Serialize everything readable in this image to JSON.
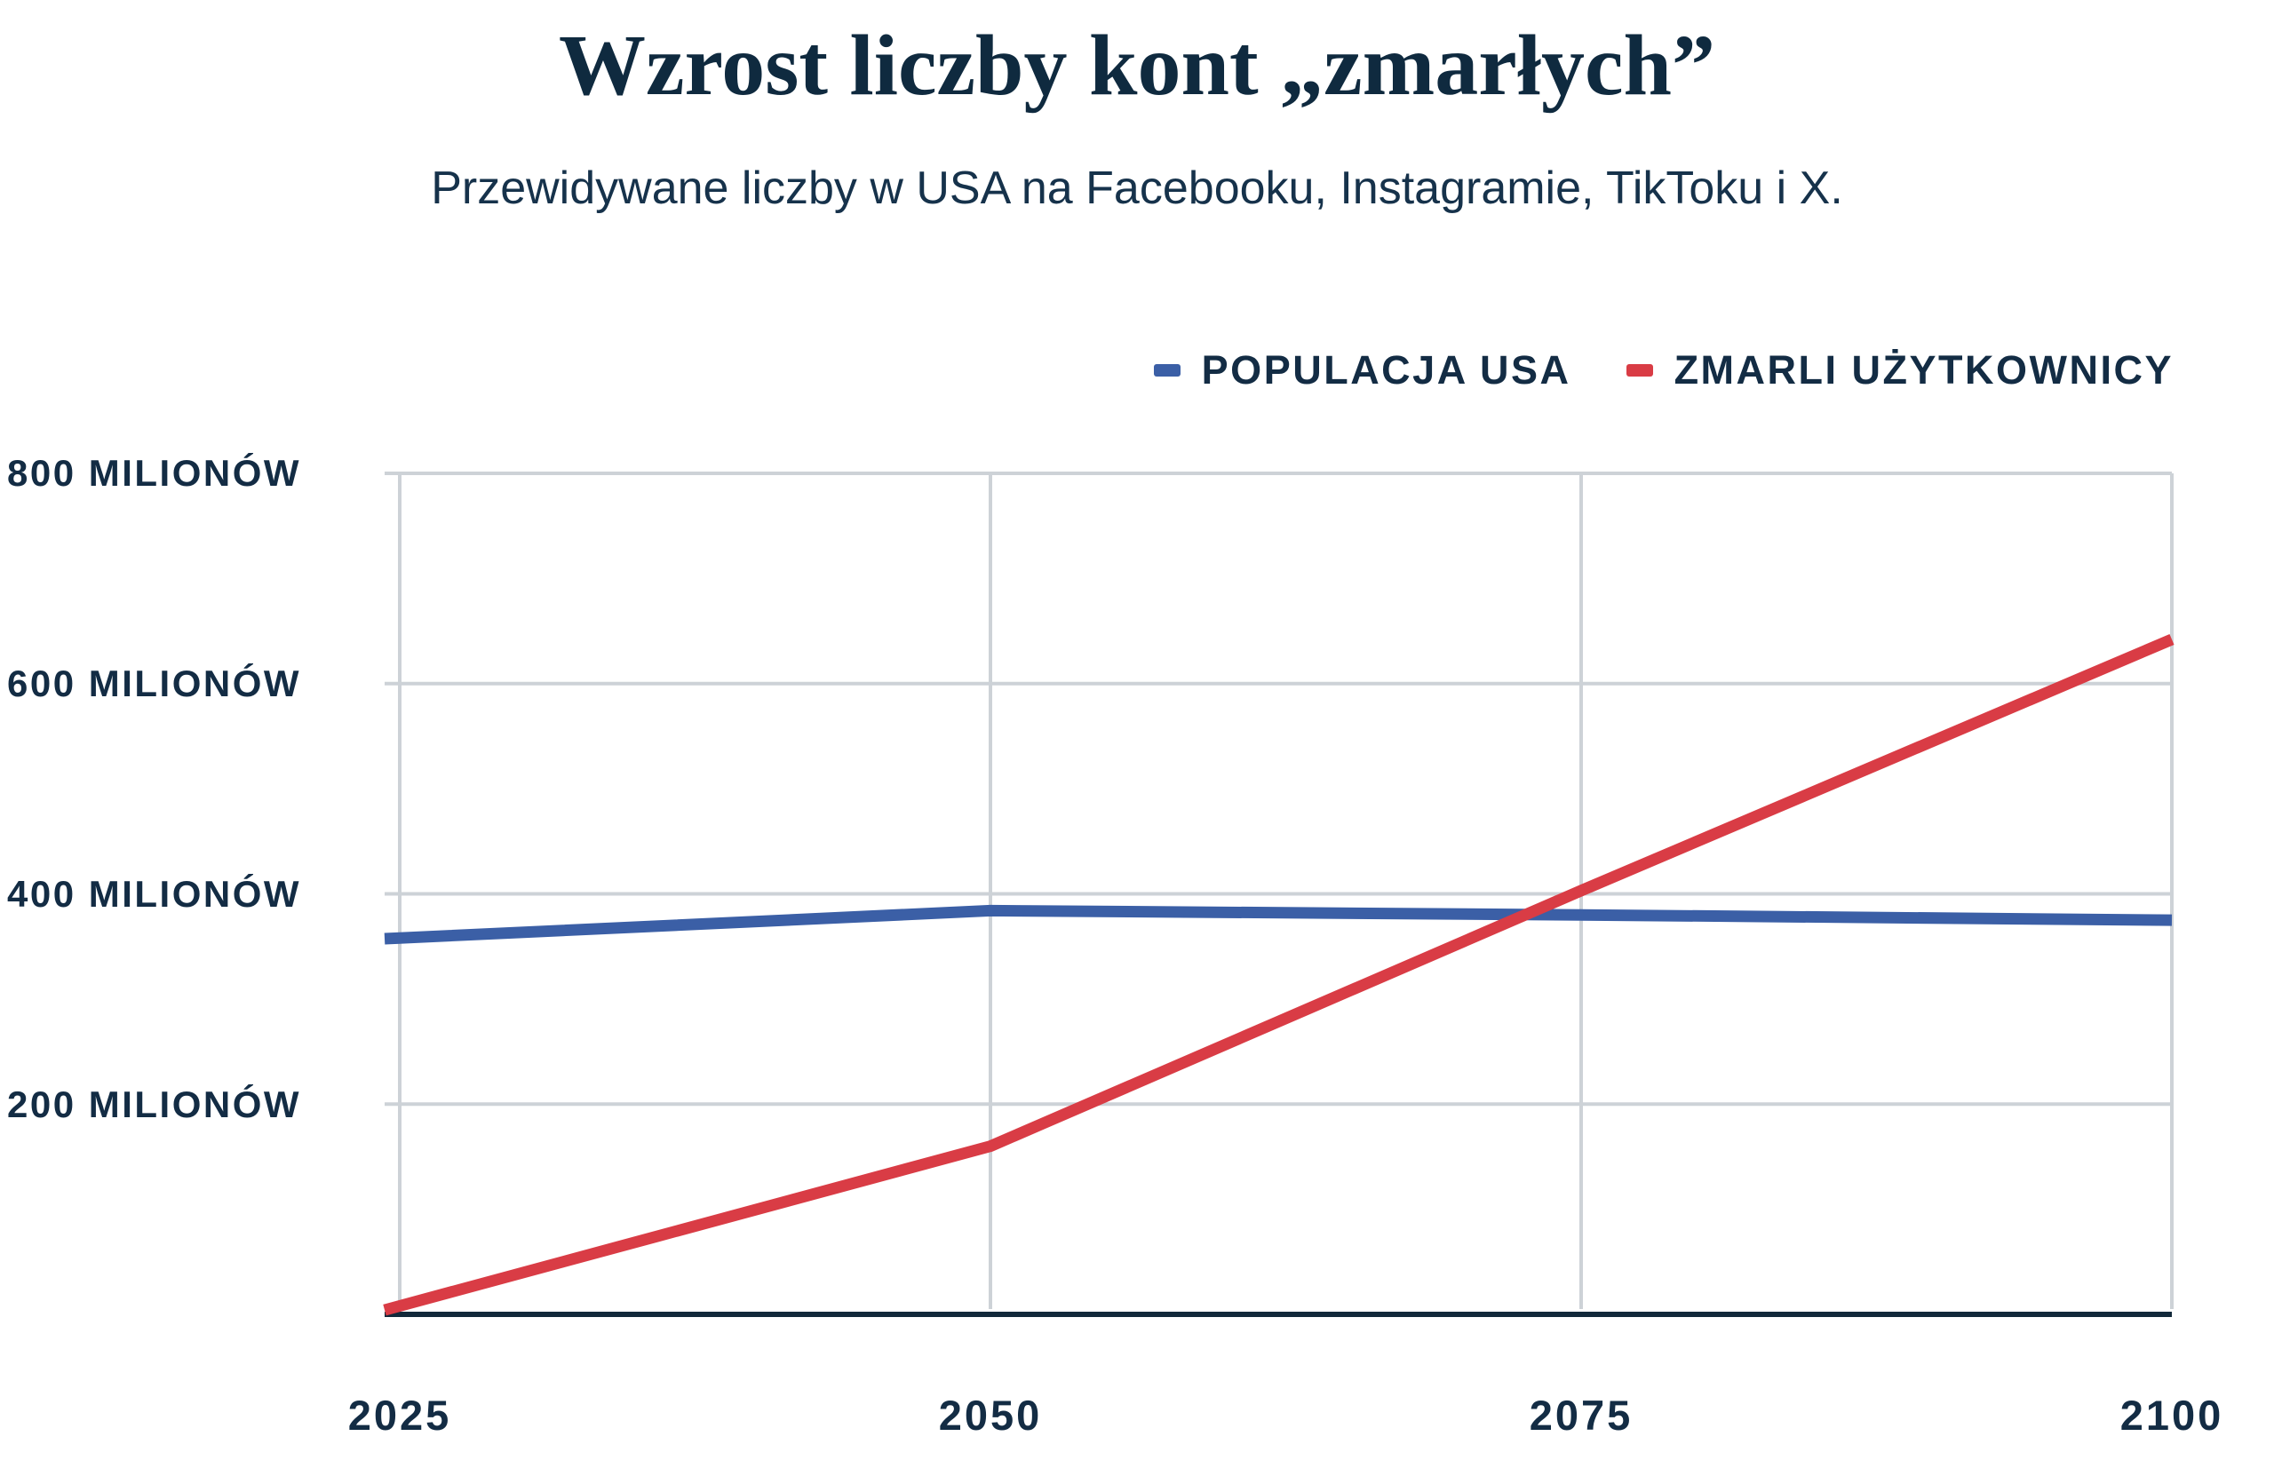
{
  "header": {
    "title": "Wzrost liczby kont „zmarłych”",
    "subtitle": "Przewidywane liczby w USA na Facebooku, Instagramie, TikToku i X."
  },
  "legend": [
    {
      "label": "POPULACJA USA",
      "color": "#3b5fa6"
    },
    {
      "label": "ZMARLI UŻYTKOWNICY",
      "color": "#d93c45"
    }
  ],
  "colors": {
    "background": "#ffffff",
    "title_text": "#0f2a3f",
    "label_text": "#132c44",
    "gridline": "#cdd2d7",
    "baseline_axis": "#12293a",
    "series_blue": "#3b5fa6",
    "series_red": "#d93c45"
  },
  "chart_data": {
    "type": "line",
    "title": "Wzrost liczby kont „zmarłych”",
    "subtitle": "Przewidywane liczby w USA na Facebooku, Instagramie, TikToku i X.",
    "unit": "milionów",
    "x": [
      2025,
      2050,
      2075,
      2100
    ],
    "x_tick_labels": [
      "2025",
      "2050",
      "2075",
      "2100"
    ],
    "y_tick_values": [
      800,
      600,
      400,
      200
    ],
    "y_tick_labels": [
      "800 MILIONÓW",
      "600 MILIONÓW",
      "400 MILIONÓW",
      "200 MILIONÓW"
    ],
    "ylim": [
      0,
      800
    ],
    "xlim": [
      2025,
      2100
    ],
    "grid": true,
    "legend_position": "top-right",
    "series": [
      {
        "name": "POPULACJA USA",
        "color": "#3b5fa6",
        "values": [
          358,
          384,
          380,
          375
        ]
      },
      {
        "name": "ZMARLI UŻYTKOWNICY",
        "color": "#d93c45",
        "values": [
          8,
          160,
          403,
          642
        ]
      }
    ]
  }
}
